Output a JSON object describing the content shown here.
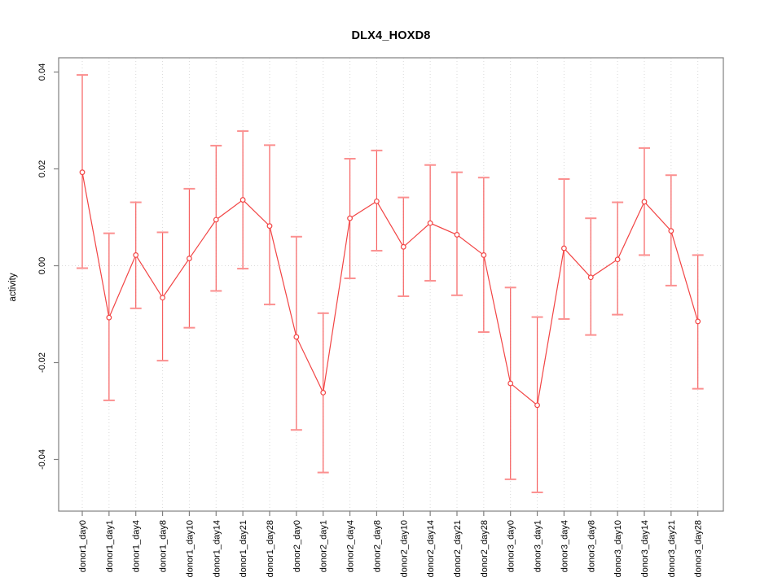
{
  "title": "DLX4_HOXD8",
  "axes": {
    "y_label": "activity",
    "y_tick_labels": [
      "0.04",
      "0.02",
      "0.00",
      "-0.02",
      "-0.04"
    ],
    "y_tick_values": [
      0.04,
      0.02,
      0.0,
      -0.02,
      -0.04
    ]
  },
  "colors": {
    "series_line": "#f24444",
    "point_stroke": "#f24444",
    "point_fill": "#ffffff",
    "errorbar_line": "#f66060",
    "errorbar_cap": "#fb9090",
    "gridline": "#d9d9d9",
    "axis_frame": "#808080",
    "text": "#000000"
  },
  "chart_data": {
    "type": "line",
    "title": "DLX4_HOXD8",
    "xlabel": "",
    "ylabel": "activity",
    "ylim": [
      -0.049,
      0.042
    ],
    "yticks": [
      0.04,
      0.02,
      0.0,
      -0.02,
      -0.04
    ],
    "grid": "dotted vertical gridline at every category; dotted horizontal line at y=0; full axis box",
    "legend": "none",
    "error_bars": true,
    "categories": [
      "donor1_day0",
      "donor1_day1",
      "donor1_day4",
      "donor1_day8",
      "donor1_day10",
      "donor1_day14",
      "donor1_day21",
      "donor1_day28",
      "donor2_day0",
      "donor2_day1",
      "donor2_day4",
      "donor2_day8",
      "donor2_day10",
      "donor2_day14",
      "donor2_day21",
      "donor2_day28",
      "donor3_day0",
      "donor3_day1",
      "donor3_day4",
      "donor3_day8",
      "donor3_day10",
      "donor3_day14",
      "donor3_day21",
      "donor3_day28"
    ],
    "series": [
      {
        "name": "activity",
        "values": [
          0.0193,
          -0.0107,
          0.0022,
          -0.0066,
          0.0015,
          0.0095,
          0.0136,
          0.0082,
          -0.0147,
          -0.0262,
          0.0098,
          0.0133,
          0.0039,
          0.0088,
          0.0064,
          0.0022,
          -0.0243,
          -0.0288,
          0.0036,
          -0.0024,
          0.0013,
          0.0132,
          0.0072,
          -0.0115
        ],
        "lower": [
          -0.0005,
          -0.0278,
          -0.0088,
          -0.0196,
          -0.0128,
          -0.0052,
          -0.0006,
          -0.008,
          -0.0339,
          -0.0427,
          -0.0026,
          0.0031,
          -0.0063,
          -0.0031,
          -0.0061,
          -0.0137,
          -0.0441,
          -0.0468,
          -0.011,
          -0.0143,
          -0.0101,
          0.0022,
          -0.0041,
          -0.0254
        ],
        "upper": [
          0.0394,
          0.0067,
          0.0131,
          0.0069,
          0.0159,
          0.0248,
          0.0278,
          0.0249,
          0.006,
          -0.0098,
          0.0221,
          0.0238,
          0.0141,
          0.0208,
          0.0193,
          0.0182,
          -0.0045,
          -0.0106,
          0.0179,
          0.0098,
          0.0131,
          0.0243,
          0.0187,
          0.0022
        ]
      }
    ]
  }
}
